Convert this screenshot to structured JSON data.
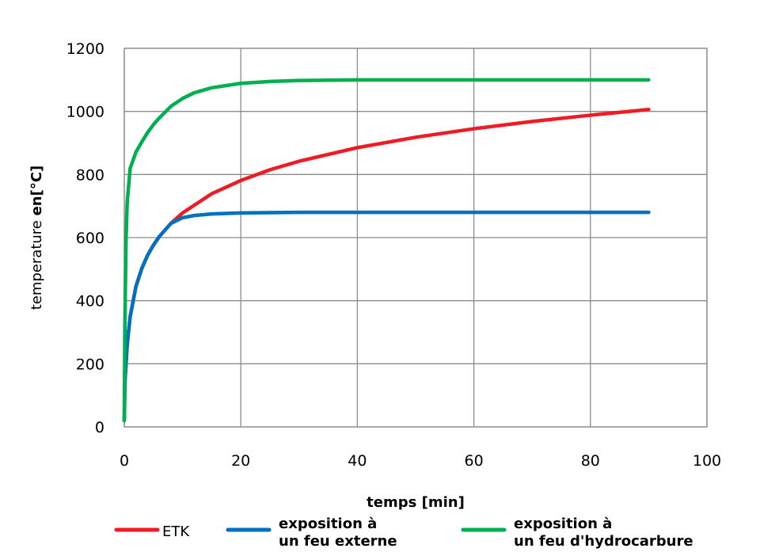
{
  "chart_data": {
    "type": "line",
    "xlabel": "temps [min]",
    "ylabel_parts": [
      "temperature ",
      "en[°C]"
    ],
    "xlim": [
      0,
      100
    ],
    "ylim": [
      0,
      1200
    ],
    "x_ticks": [
      0,
      20,
      40,
      60,
      80,
      100
    ],
    "y_ticks": [
      0,
      200,
      400,
      600,
      800,
      1000,
      1200
    ],
    "grid": true,
    "legend_position": "bottom",
    "series": [
      {
        "name": "ETK",
        "name_lines": [
          "ETK"
        ],
        "color": "#ee1c25",
        "x": [
          0,
          0.1,
          0.5,
          1,
          2,
          3,
          4,
          5,
          6,
          8,
          10,
          15,
          20,
          25,
          30,
          40,
          50,
          60,
          70,
          80,
          90
        ],
        "y": [
          20,
          140,
          262,
          349,
          445,
          502,
          544,
          576,
          603,
          645,
          678,
          739,
          781,
          815,
          842,
          885,
          918,
          945,
          968,
          988,
          1006
        ]
      },
      {
        "name": "exposition à un feu externe",
        "name_lines": [
          "exposition à",
          "un feu externe"
        ],
        "color": "#0070c0",
        "x": [
          0,
          0.1,
          0.5,
          1,
          2,
          3,
          4,
          5,
          6,
          8,
          10,
          12,
          15,
          20,
          25,
          30,
          40,
          50,
          60,
          70,
          80,
          90
        ],
        "y": [
          20,
          140,
          262,
          349,
          445,
          502,
          544,
          576,
          603,
          645,
          663,
          670,
          675,
          678,
          679,
          680,
          680,
          680,
          680,
          680,
          680,
          680
        ]
      },
      {
        "name": "exposition à un feu d'hydrocarbure",
        "name_lines": [
          "exposition à",
          "un feu d'hydrocarbure"
        ],
        "color": "#00b050",
        "x": [
          0,
          0.1,
          0.3,
          0.5,
          1,
          2,
          3,
          4,
          5,
          6,
          8,
          10,
          12,
          15,
          20,
          25,
          30,
          40,
          50,
          60,
          70,
          80,
          90
        ],
        "y": [
          20,
          323,
          596,
          712,
          819,
          871,
          903,
          933,
          958,
          979,
          1016,
          1041,
          1059,
          1075,
          1089,
          1095,
          1098,
          1100,
          1100,
          1100,
          1100,
          1100,
          1100
        ]
      }
    ]
  }
}
